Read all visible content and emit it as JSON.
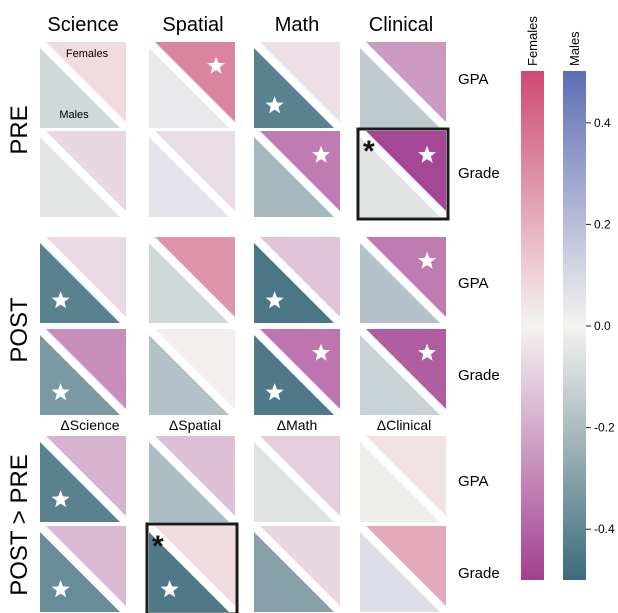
{
  "chart_data": {
    "type": "heatmap",
    "columns": [
      "Science",
      "Spatial",
      "Math",
      "Clinical"
    ],
    "delta_columns": [
      "ΔScience",
      "ΔSpatial",
      "ΔMath",
      "ΔClinical"
    ],
    "row_measures": [
      "GPA",
      "Grade"
    ],
    "sections": [
      "PRE",
      "POST",
      "POST > PRE"
    ],
    "cell_legend": {
      "upper": "Females",
      "lower": "Males"
    },
    "females_colorbar": {
      "label": "Females",
      "range": [
        -0.5,
        0.5
      ]
    },
    "males_colorbar": {
      "label": "Males",
      "range": [
        -0.5,
        0.5
      ],
      "ticks": [
        {
          "v": 0.4,
          "t": "0.4"
        },
        {
          "v": 0.2,
          "t": "0.2"
        },
        {
          "v": 0.0,
          "t": "0.0"
        },
        {
          "v": -0.2,
          "t": "-0.2"
        },
        {
          "v": -0.4,
          "t": "-0.4"
        }
      ]
    },
    "cells": [
      {
        "section": "PRE",
        "row": "GPA",
        "column": "Science",
        "females": 0.07,
        "males": -0.1,
        "female_sig": false,
        "male_sig": false,
        "boxed": false
      },
      {
        "section": "PRE",
        "row": "GPA",
        "column": "Spatial",
        "females": 0.33,
        "males": 0.04,
        "female_sig": true,
        "male_sig": false,
        "boxed": false
      },
      {
        "section": "PRE",
        "row": "GPA",
        "column": "Math",
        "females": -0.05,
        "males": -0.42,
        "female_sig": false,
        "male_sig": true,
        "boxed": false
      },
      {
        "section": "PRE",
        "row": "GPA",
        "column": "Clinical",
        "females": -0.25,
        "males": -0.15,
        "female_sig": false,
        "male_sig": false,
        "boxed": false
      },
      {
        "section": "PRE",
        "row": "Grade",
        "column": "Science",
        "females": -0.08,
        "males": -0.05,
        "female_sig": false,
        "male_sig": false,
        "boxed": false
      },
      {
        "section": "PRE",
        "row": "Grade",
        "column": "Spatial",
        "females": -0.06,
        "males": 0.06,
        "female_sig": false,
        "male_sig": false,
        "boxed": false
      },
      {
        "section": "PRE",
        "row": "Grade",
        "column": "Math",
        "females": -0.33,
        "males": -0.22,
        "female_sig": true,
        "male_sig": false,
        "boxed": false
      },
      {
        "section": "PRE",
        "row": "Grade",
        "column": "Clinical",
        "females": -0.48,
        "males": -0.06,
        "female_sig": true,
        "male_sig": false,
        "boxed": true
      },
      {
        "section": "POST",
        "row": "GPA",
        "column": "Science",
        "females": -0.07,
        "males": -0.42,
        "female_sig": false,
        "male_sig": true,
        "boxed": false
      },
      {
        "section": "POST",
        "row": "GPA",
        "column": "Spatial",
        "females": 0.28,
        "males": -0.1,
        "female_sig": false,
        "male_sig": false,
        "boxed": false
      },
      {
        "section": "POST",
        "row": "GPA",
        "column": "Math",
        "females": -0.13,
        "males": -0.46,
        "female_sig": false,
        "male_sig": true,
        "boxed": false
      },
      {
        "section": "POST",
        "row": "GPA",
        "column": "Clinical",
        "females": -0.33,
        "males": -0.18,
        "female_sig": true,
        "male_sig": false,
        "boxed": false
      },
      {
        "section": "POST",
        "row": "Grade",
        "column": "Science",
        "females": -0.28,
        "males": -0.33,
        "female_sig": false,
        "male_sig": true,
        "boxed": false
      },
      {
        "section": "POST",
        "row": "Grade",
        "column": "Spatial",
        "females": -0.01,
        "males": -0.18,
        "female_sig": false,
        "male_sig": false,
        "boxed": false
      },
      {
        "section": "POST",
        "row": "Grade",
        "column": "Math",
        "females": -0.35,
        "males": -0.45,
        "female_sig": true,
        "male_sig": true,
        "boxed": false
      },
      {
        "section": "POST",
        "row": "Grade",
        "column": "Clinical",
        "females": -0.42,
        "males": -0.12,
        "female_sig": true,
        "male_sig": false,
        "boxed": false
      },
      {
        "section": "POST > PRE",
        "row": "GPA",
        "column": "ΔScience",
        "females": -0.18,
        "males": -0.42,
        "female_sig": false,
        "male_sig": true,
        "boxed": false
      },
      {
        "section": "POST > PRE",
        "row": "GPA",
        "column": "ΔSpatial",
        "females": -0.14,
        "males": -0.2,
        "female_sig": false,
        "male_sig": false,
        "boxed": false
      },
      {
        "section": "POST > PRE",
        "row": "GPA",
        "column": "ΔMath",
        "females": -0.1,
        "males": -0.06,
        "female_sig": false,
        "male_sig": false,
        "boxed": false
      },
      {
        "section": "POST > PRE",
        "row": "GPA",
        "column": "ΔClinical",
        "females": 0.05,
        "males": -0.02,
        "female_sig": false,
        "male_sig": false,
        "boxed": false
      },
      {
        "section": "POST > PRE",
        "row": "Grade",
        "column": "ΔScience",
        "females": -0.16,
        "males": -0.38,
        "female_sig": false,
        "male_sig": true,
        "boxed": false
      },
      {
        "section": "POST > PRE",
        "row": "Grade",
        "column": "ΔSpatial",
        "females": 0.07,
        "males": -0.45,
        "female_sig": false,
        "male_sig": true,
        "boxed": true
      },
      {
        "section": "POST > PRE",
        "row": "Grade",
        "column": "ΔMath",
        "females": -0.08,
        "males": -0.3,
        "female_sig": false,
        "male_sig": false,
        "boxed": false
      },
      {
        "section": "POST > PRE",
        "row": "Grade",
        "column": "ΔClinical",
        "females": 0.22,
        "males": 0.08,
        "female_sig": false,
        "male_sig": false,
        "boxed": false
      }
    ]
  },
  "colors": {
    "female_max": "#cf4a75",
    "male_max": "#5d6eb5",
    "neutral": "#f5f3f0",
    "female_min": "#a33f92",
    "male_min": "#3c6b7c",
    "star": "#ffffff",
    "box": "#1a1a1a"
  }
}
